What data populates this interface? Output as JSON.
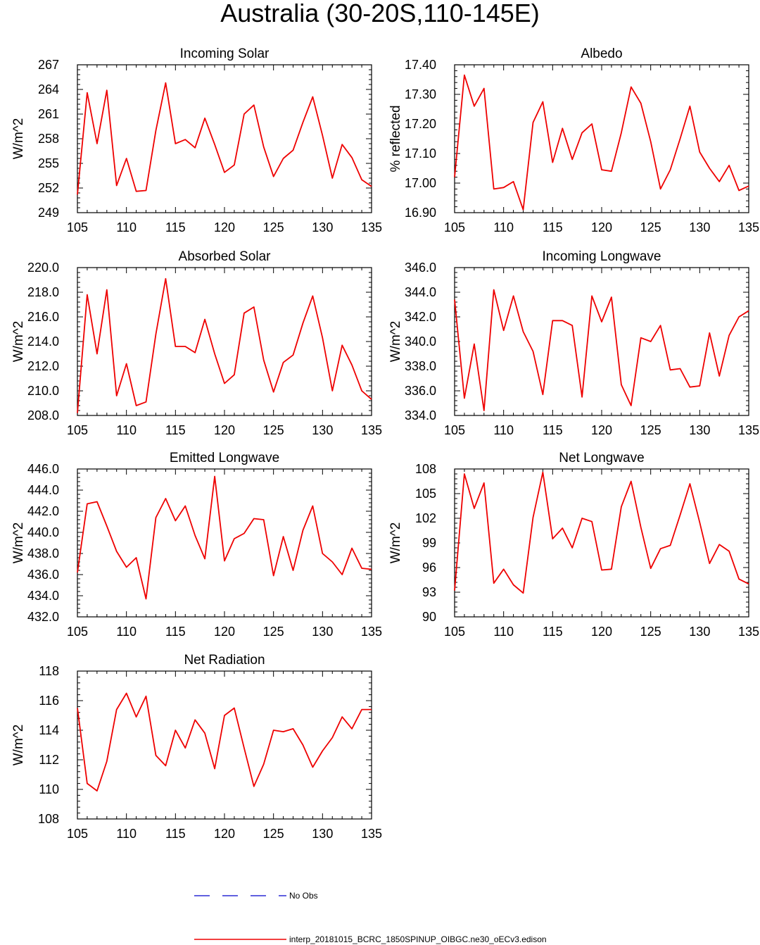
{
  "figure": {
    "title": "Australia (30-20S,110-145E)",
    "line_color": "#ee0000",
    "obs_color": "#0000cc"
  },
  "chart_data": [
    {
      "type": "line",
      "title": "Incoming Solar",
      "ylabel": "W/m^2",
      "xlim": [
        105,
        135
      ],
      "ylim": [
        249,
        267
      ],
      "yticks": [
        "249",
        "252",
        "255",
        "258",
        "261",
        "264",
        "267"
      ],
      "xticks": [
        "105",
        "110",
        "115",
        "120",
        "125",
        "130",
        "135"
      ],
      "x": [
        105,
        106,
        107,
        108,
        109,
        110,
        111,
        112,
        113,
        114,
        115,
        116,
        117,
        118,
        119,
        120,
        121,
        122,
        123,
        124,
        125,
        126,
        127,
        128,
        129,
        130,
        131,
        132,
        133,
        134,
        135
      ],
      "values": [
        251.2,
        263.6,
        257.4,
        263.9,
        252.3,
        255.6,
        251.6,
        251.7,
        259.0,
        264.8,
        257.4,
        257.9,
        256.9,
        260.5,
        257.3,
        253.9,
        254.8,
        261.0,
        262.1,
        257.0,
        253.4,
        255.6,
        256.6,
        260.0,
        263.1,
        258.4,
        253.2,
        257.3,
        255.7,
        253.0,
        252.2
      ]
    },
    {
      "type": "line",
      "title": "Albedo",
      "ylabel": "% reflected",
      "xlim": [
        105,
        135
      ],
      "ylim": [
        16.9,
        17.4
      ],
      "yticks": [
        "16.90",
        "17.00",
        "17.10",
        "17.20",
        "17.30",
        "17.40"
      ],
      "xticks": [
        "105",
        "110",
        "115",
        "120",
        "125",
        "130",
        "135"
      ],
      "x": [
        105,
        106,
        107,
        108,
        109,
        110,
        111,
        112,
        113,
        114,
        115,
        116,
        117,
        118,
        119,
        120,
        121,
        122,
        123,
        124,
        125,
        126,
        127,
        128,
        129,
        130,
        131,
        132,
        133,
        134,
        135
      ],
      "values": [
        17.02,
        17.365,
        17.26,
        17.32,
        16.98,
        16.985,
        17.005,
        16.91,
        17.205,
        17.275,
        17.07,
        17.185,
        17.08,
        17.17,
        17.2,
        17.045,
        17.04,
        17.17,
        17.325,
        17.27,
        17.14,
        16.98,
        17.045,
        17.15,
        17.26,
        17.105,
        17.05,
        17.005,
        17.06,
        16.975,
        16.99
      ]
    },
    {
      "type": "line",
      "title": "Absorbed Solar",
      "ylabel": "W/m^2",
      "xlim": [
        105,
        135
      ],
      "ylim": [
        208.0,
        220.0
      ],
      "yticks": [
        "208.0",
        "210.0",
        "212.0",
        "214.0",
        "216.0",
        "218.0",
        "220.0"
      ],
      "xticks": [
        "105",
        "110",
        "115",
        "120",
        "125",
        "130",
        "135"
      ],
      "x": [
        105,
        106,
        107,
        108,
        109,
        110,
        111,
        112,
        113,
        114,
        115,
        116,
        117,
        118,
        119,
        120,
        121,
        122,
        123,
        124,
        125,
        126,
        127,
        128,
        129,
        130,
        131,
        132,
        133,
        134,
        135
      ],
      "values": [
        208.2,
        217.8,
        213.0,
        218.2,
        209.6,
        212.2,
        208.8,
        209.1,
        214.6,
        219.1,
        213.6,
        213.6,
        213.1,
        215.8,
        213.0,
        210.6,
        211.3,
        216.3,
        216.8,
        212.5,
        209.9,
        212.3,
        212.9,
        215.5,
        217.7,
        214.3,
        210.0,
        213.7,
        212.1,
        210.0,
        209.3
      ]
    },
    {
      "type": "line",
      "title": "Incoming Longwave",
      "ylabel": "W/m^2",
      "xlim": [
        105,
        135
      ],
      "ylim": [
        334.0,
        346.0
      ],
      "yticks": [
        "334.0",
        "336.0",
        "338.0",
        "340.0",
        "342.0",
        "344.0",
        "346.0"
      ],
      "xticks": [
        "105",
        "110",
        "115",
        "120",
        "125",
        "130",
        "135"
      ],
      "x": [
        105,
        106,
        107,
        108,
        109,
        110,
        111,
        112,
        113,
        114,
        115,
        116,
        117,
        118,
        119,
        120,
        121,
        122,
        123,
        124,
        125,
        126,
        127,
        128,
        129,
        130,
        131,
        132,
        133,
        134,
        135
      ],
      "values": [
        343.4,
        335.4,
        339.8,
        334.4,
        344.2,
        340.9,
        343.7,
        340.8,
        339.2,
        335.7,
        341.7,
        341.7,
        341.3,
        335.5,
        343.7,
        341.6,
        343.6,
        336.5,
        334.8,
        340.3,
        340.0,
        341.3,
        337.7,
        337.8,
        336.3,
        336.4,
        340.7,
        337.2,
        340.5,
        342.0,
        342.5
      ]
    },
    {
      "type": "line",
      "title": "Emitted Longwave",
      "ylabel": "W/m^2",
      "xlim": [
        105,
        135
      ],
      "ylim": [
        432.0,
        446.0
      ],
      "yticks": [
        "432.0",
        "434.0",
        "436.0",
        "438.0",
        "440.0",
        "442.0",
        "444.0",
        "446.0"
      ],
      "xticks": [
        "105",
        "110",
        "115",
        "120",
        "125",
        "130",
        "135"
      ],
      "x": [
        105,
        106,
        107,
        108,
        109,
        110,
        111,
        112,
        113,
        114,
        115,
        116,
        117,
        118,
        119,
        120,
        121,
        122,
        123,
        124,
        125,
        126,
        127,
        128,
        129,
        130,
        131,
        132,
        133,
        134,
        135
      ],
      "values": [
        436.2,
        442.7,
        442.9,
        440.6,
        438.2,
        436.7,
        437.6,
        433.7,
        441.4,
        443.2,
        441.1,
        442.5,
        439.7,
        437.5,
        445.3,
        437.3,
        439.4,
        439.9,
        441.3,
        441.2,
        435.9,
        439.6,
        436.4,
        440.2,
        442.5,
        438.0,
        437.2,
        436.0,
        438.5,
        436.6,
        436.5
      ]
    },
    {
      "type": "line",
      "title": "Net Longwave",
      "ylabel": "W/m^2",
      "xlim": [
        105,
        135
      ],
      "ylim": [
        90,
        108
      ],
      "yticks": [
        "90",
        "93",
        "96",
        "99",
        "102",
        "105",
        "108"
      ],
      "xticks": [
        "105",
        "110",
        "115",
        "120",
        "125",
        "130",
        "135"
      ],
      "x": [
        105,
        106,
        107,
        108,
        109,
        110,
        111,
        112,
        113,
        114,
        115,
        116,
        117,
        118,
        119,
        120,
        121,
        122,
        123,
        124,
        125,
        126,
        127,
        128,
        129,
        130,
        131,
        132,
        133,
        134,
        135
      ],
      "values": [
        93.2,
        107.4,
        103.2,
        106.3,
        94.1,
        95.8,
        93.9,
        92.9,
        102.1,
        107.6,
        99.5,
        100.8,
        98.4,
        102.0,
        101.6,
        95.7,
        95.8,
        103.4,
        106.5,
        100.9,
        95.9,
        98.3,
        98.7,
        102.4,
        106.2,
        101.5,
        96.5,
        98.8,
        98.0,
        94.6,
        94.0
      ]
    },
    {
      "type": "line",
      "title": "Net Radiation",
      "ylabel": "W/m^2",
      "xlim": [
        105,
        135
      ],
      "ylim": [
        108,
        118
      ],
      "yticks": [
        "108",
        "110",
        "112",
        "114",
        "116",
        "118"
      ],
      "xticks": [
        "105",
        "110",
        "115",
        "120",
        "125",
        "130",
        "135"
      ],
      "x": [
        105,
        106,
        107,
        108,
        109,
        110,
        111,
        112,
        113,
        114,
        115,
        116,
        117,
        118,
        119,
        120,
        121,
        122,
        123,
        124,
        125,
        126,
        127,
        128,
        129,
        130,
        131,
        132,
        133,
        134,
        135
      ],
      "values": [
        115.5,
        110.4,
        109.9,
        111.9,
        115.4,
        116.5,
        114.9,
        116.3,
        112.3,
        111.6,
        114.0,
        112.8,
        114.7,
        113.8,
        111.4,
        115.0,
        115.5,
        112.8,
        110.2,
        111.7,
        114.0,
        113.9,
        114.1,
        113.0,
        111.5,
        112.6,
        113.5,
        114.9,
        114.1,
        115.4,
        115.4
      ]
    }
  ],
  "legend": {
    "obs_label": "No Obs",
    "model_label": "interp_20181015_BCRC_1850SPINUP_OIBGC.ne30_oECv3.edison"
  }
}
